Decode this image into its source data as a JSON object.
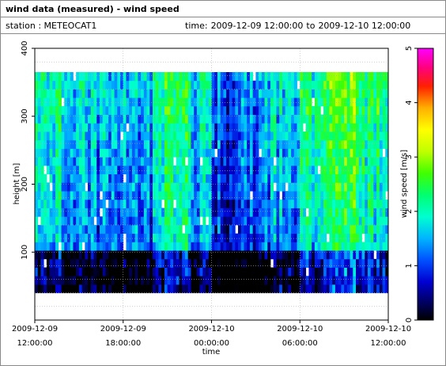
{
  "header": {
    "title": "wind data (measured) - wind speed",
    "station_label": "station : METEOCAT1",
    "time_prefix": "time:",
    "time_start": "2009-12-09 12:00:00",
    "time_to": "to",
    "time_end": "2009-12-10 12:00:00"
  },
  "chart_data": {
    "type": "heatmap",
    "title": "wind data (measured) - wind speed",
    "xlabel": "time",
    "ylabel": "height [m]",
    "x_tick_labels": [
      [
        "2009-12-09",
        "12:00:00"
      ],
      [
        "2009-12-09",
        "18:00:00"
      ],
      [
        "2009-12-10",
        "00:00:00"
      ],
      [
        "2009-12-10",
        "06:00:00"
      ],
      [
        "2009-12-10",
        "12:00:00"
      ]
    ],
    "x_range_hours": [
      0,
      24
    ],
    "y_ticks": [
      100,
      200,
      300,
      400
    ],
    "ylim": [
      0,
      400
    ],
    "height_range_m": [
      40,
      365
    ],
    "colorbar": {
      "label": "wind speed [m/s]",
      "range": [
        0,
        5
      ],
      "ticks": [
        0,
        1,
        2,
        3,
        4,
        5
      ]
    },
    "grid": true,
    "note": "approximate column-mean wind speed (m/s) per time segment",
    "segments": [
      {
        "t0": 0.0,
        "t1": 2.0,
        "mean_speed": 1.9
      },
      {
        "t0": 2.0,
        "t1": 4.0,
        "mean_speed": 1.6
      },
      {
        "t0": 4.0,
        "t1": 6.0,
        "mean_speed": 1.4
      },
      {
        "t0": 6.0,
        "t1": 8.0,
        "mean_speed": 1.3
      },
      {
        "t0": 8.0,
        "t1": 10.5,
        "mean_speed": 2.1
      },
      {
        "t0": 10.5,
        "t1": 12.0,
        "mean_speed": 1.6
      },
      {
        "t0": 12.0,
        "t1": 14.0,
        "mean_speed": 0.9
      },
      {
        "t0": 14.0,
        "t1": 16.0,
        "mean_speed": 1.2
      },
      {
        "t0": 16.0,
        "t1": 18.0,
        "mean_speed": 1.5
      },
      {
        "t0": 18.0,
        "t1": 20.0,
        "mean_speed": 1.9
      },
      {
        "t0": 20.0,
        "t1": 22.0,
        "mean_speed": 2.5
      },
      {
        "t0": 22.0,
        "t1": 24.0,
        "mean_speed": 2.1
      }
    ]
  }
}
